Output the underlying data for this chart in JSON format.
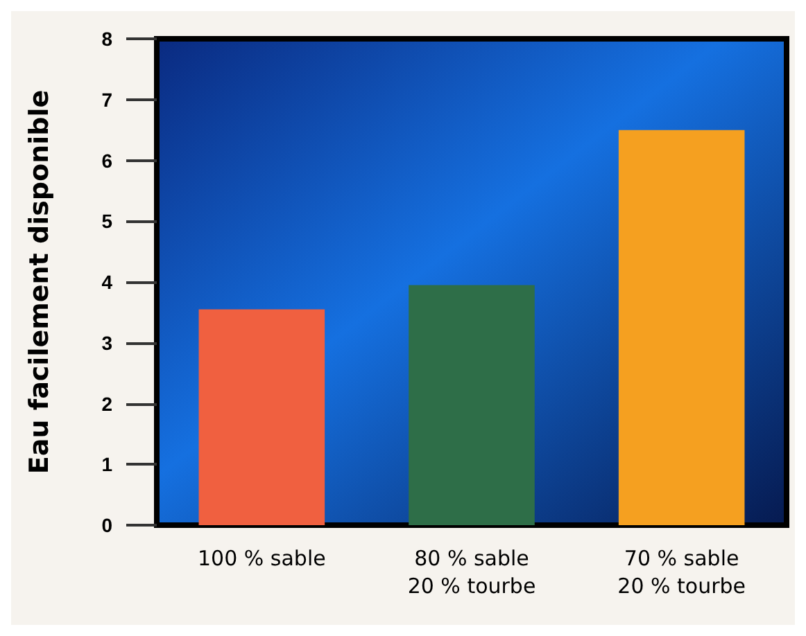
{
  "chart_data": {
    "type": "bar",
    "ylabel": "Eau facilement disponible",
    "categories": [
      "100 % sable",
      "80 % sable\n20 % tourbe",
      "70 % sable\n20 % tourbe"
    ],
    "values": [
      3.55,
      3.95,
      6.5
    ],
    "colors": [
      "#f06040",
      "#2e6e48",
      "#f5a020"
    ],
    "ylim": [
      0,
      8
    ],
    "yticks": [
      0,
      1,
      2,
      3,
      4,
      5,
      6,
      7,
      8
    ],
    "grid": false
  }
}
